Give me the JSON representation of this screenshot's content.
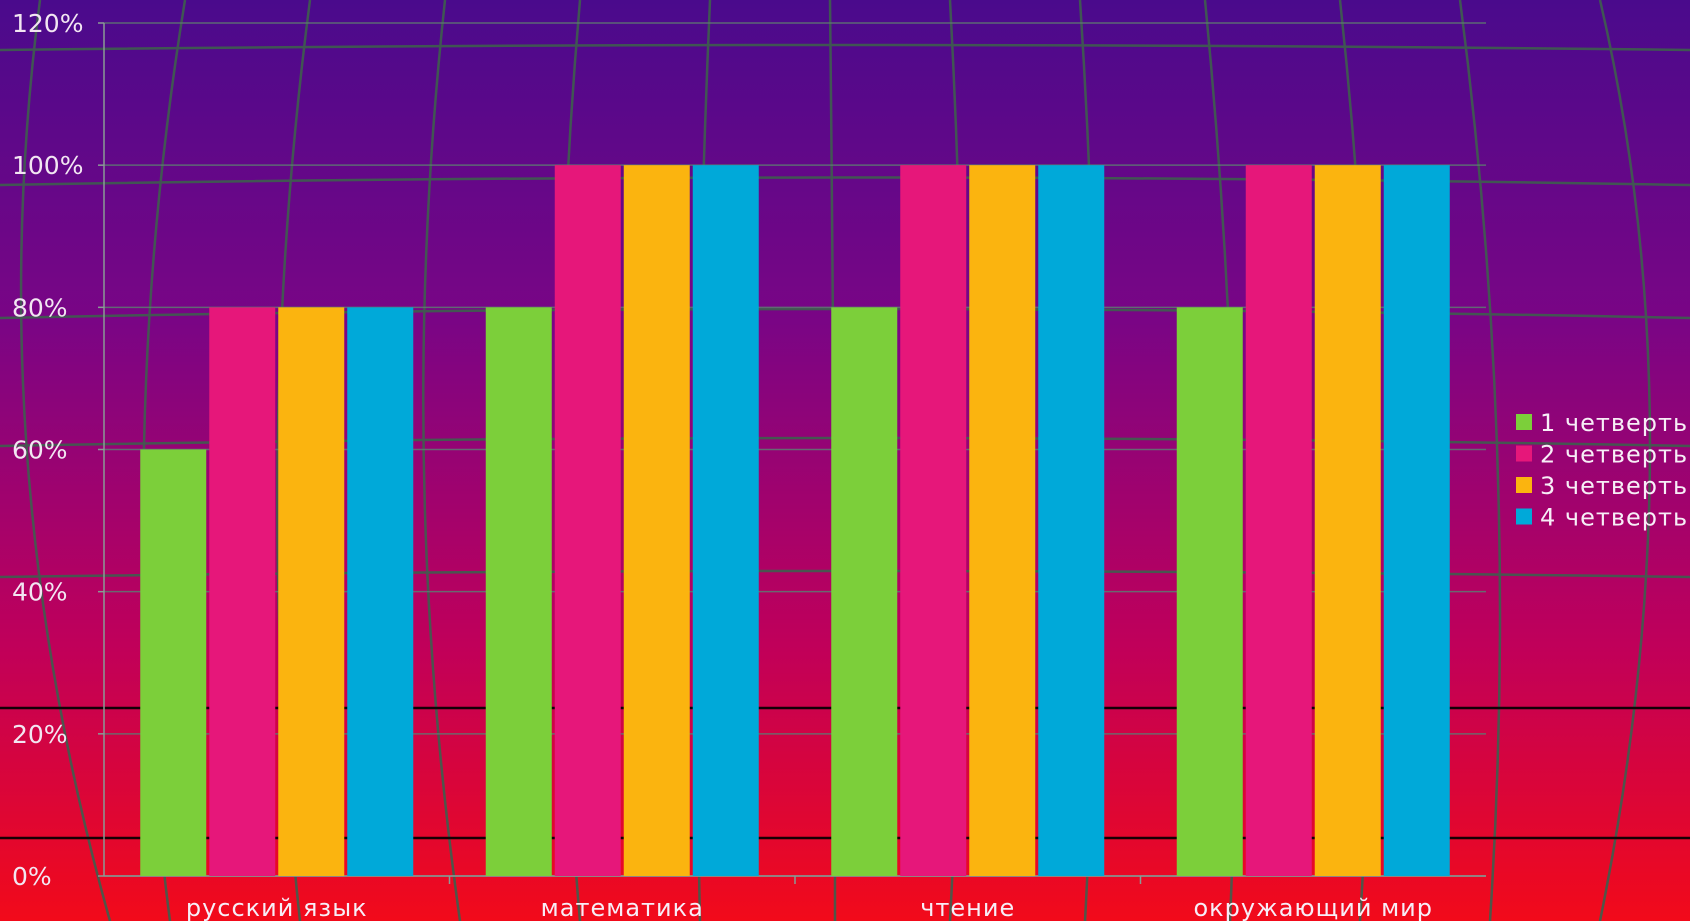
{
  "chart_data": {
    "type": "bar",
    "categories": [
      "русский язык",
      "математика",
      "чтение",
      "окружающий мир"
    ],
    "series": [
      {
        "name": "1 четверть",
        "values": [
          60,
          80,
          80,
          80
        ],
        "color": "#7ccf3a"
      },
      {
        "name": "2 четверть",
        "values": [
          80,
          100,
          100,
          100
        ],
        "color": "#e6177a"
      },
      {
        "name": "3 четверть",
        "values": [
          80,
          100,
          100,
          100
        ],
        "color": "#fbb40f"
      },
      {
        "name": "4 четверть",
        "values": [
          80,
          100,
          100,
          100
        ],
        "color": "#00a9d9"
      }
    ],
    "y_ticks": [
      "0%",
      "20%",
      "40%",
      "60%",
      "80%",
      "100%",
      "120%"
    ],
    "ylim": [
      0,
      120
    ],
    "y_unit": "%",
    "title": "",
    "xlabel": "",
    "ylabel": "",
    "legend_position": "right",
    "grid": true,
    "background_gradient": [
      "#4a0a8c",
      "#7a0585",
      "#c0005a",
      "#f20a1a"
    ]
  }
}
